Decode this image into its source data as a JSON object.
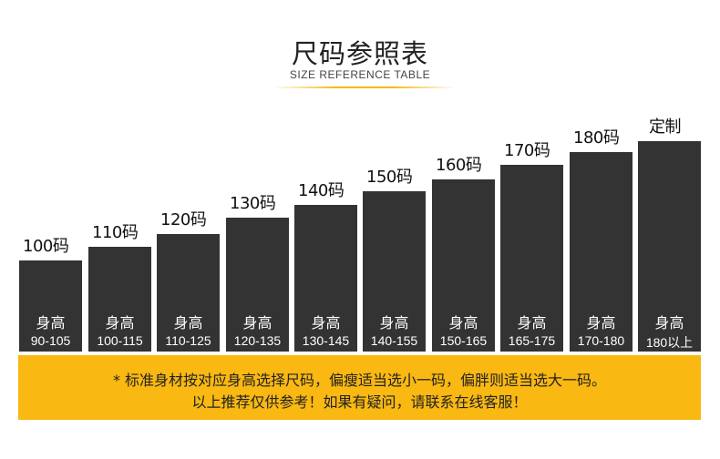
{
  "header": {
    "title": "尺码参照表",
    "subtitle": "SIZE REFERENCE TABLE",
    "accent_color": "#f9b812"
  },
  "sizes": [
    {
      "label": "100码",
      "height_word": "身高",
      "range": "90-105"
    },
    {
      "label": "110码",
      "height_word": "身高",
      "range": "100-115"
    },
    {
      "label": "120码",
      "height_word": "身高",
      "range": "110-125"
    },
    {
      "label": "130码",
      "height_word": "身高",
      "range": "120-135"
    },
    {
      "label": "140码",
      "height_word": "身高",
      "range": "130-145"
    },
    {
      "label": "150码",
      "height_word": "身高",
      "range": "140-155"
    },
    {
      "label": "160码",
      "height_word": "身高",
      "range": "150-165"
    },
    {
      "label": "170码",
      "height_word": "身高",
      "range": "165-175"
    },
    {
      "label": "180码",
      "height_word": "身高",
      "range": "170-180"
    },
    {
      "label": "定制",
      "height_word": "身高",
      "range": "180以上"
    }
  ],
  "bar_color": "#333333",
  "note": {
    "line1": "* 标准身材按对应身高选择尺码，偏瘦适当选小一码，偏胖则适当选大一码。",
    "line2": "以上推荐仅供参考！如果有疑问，请联系在线客服！"
  }
}
